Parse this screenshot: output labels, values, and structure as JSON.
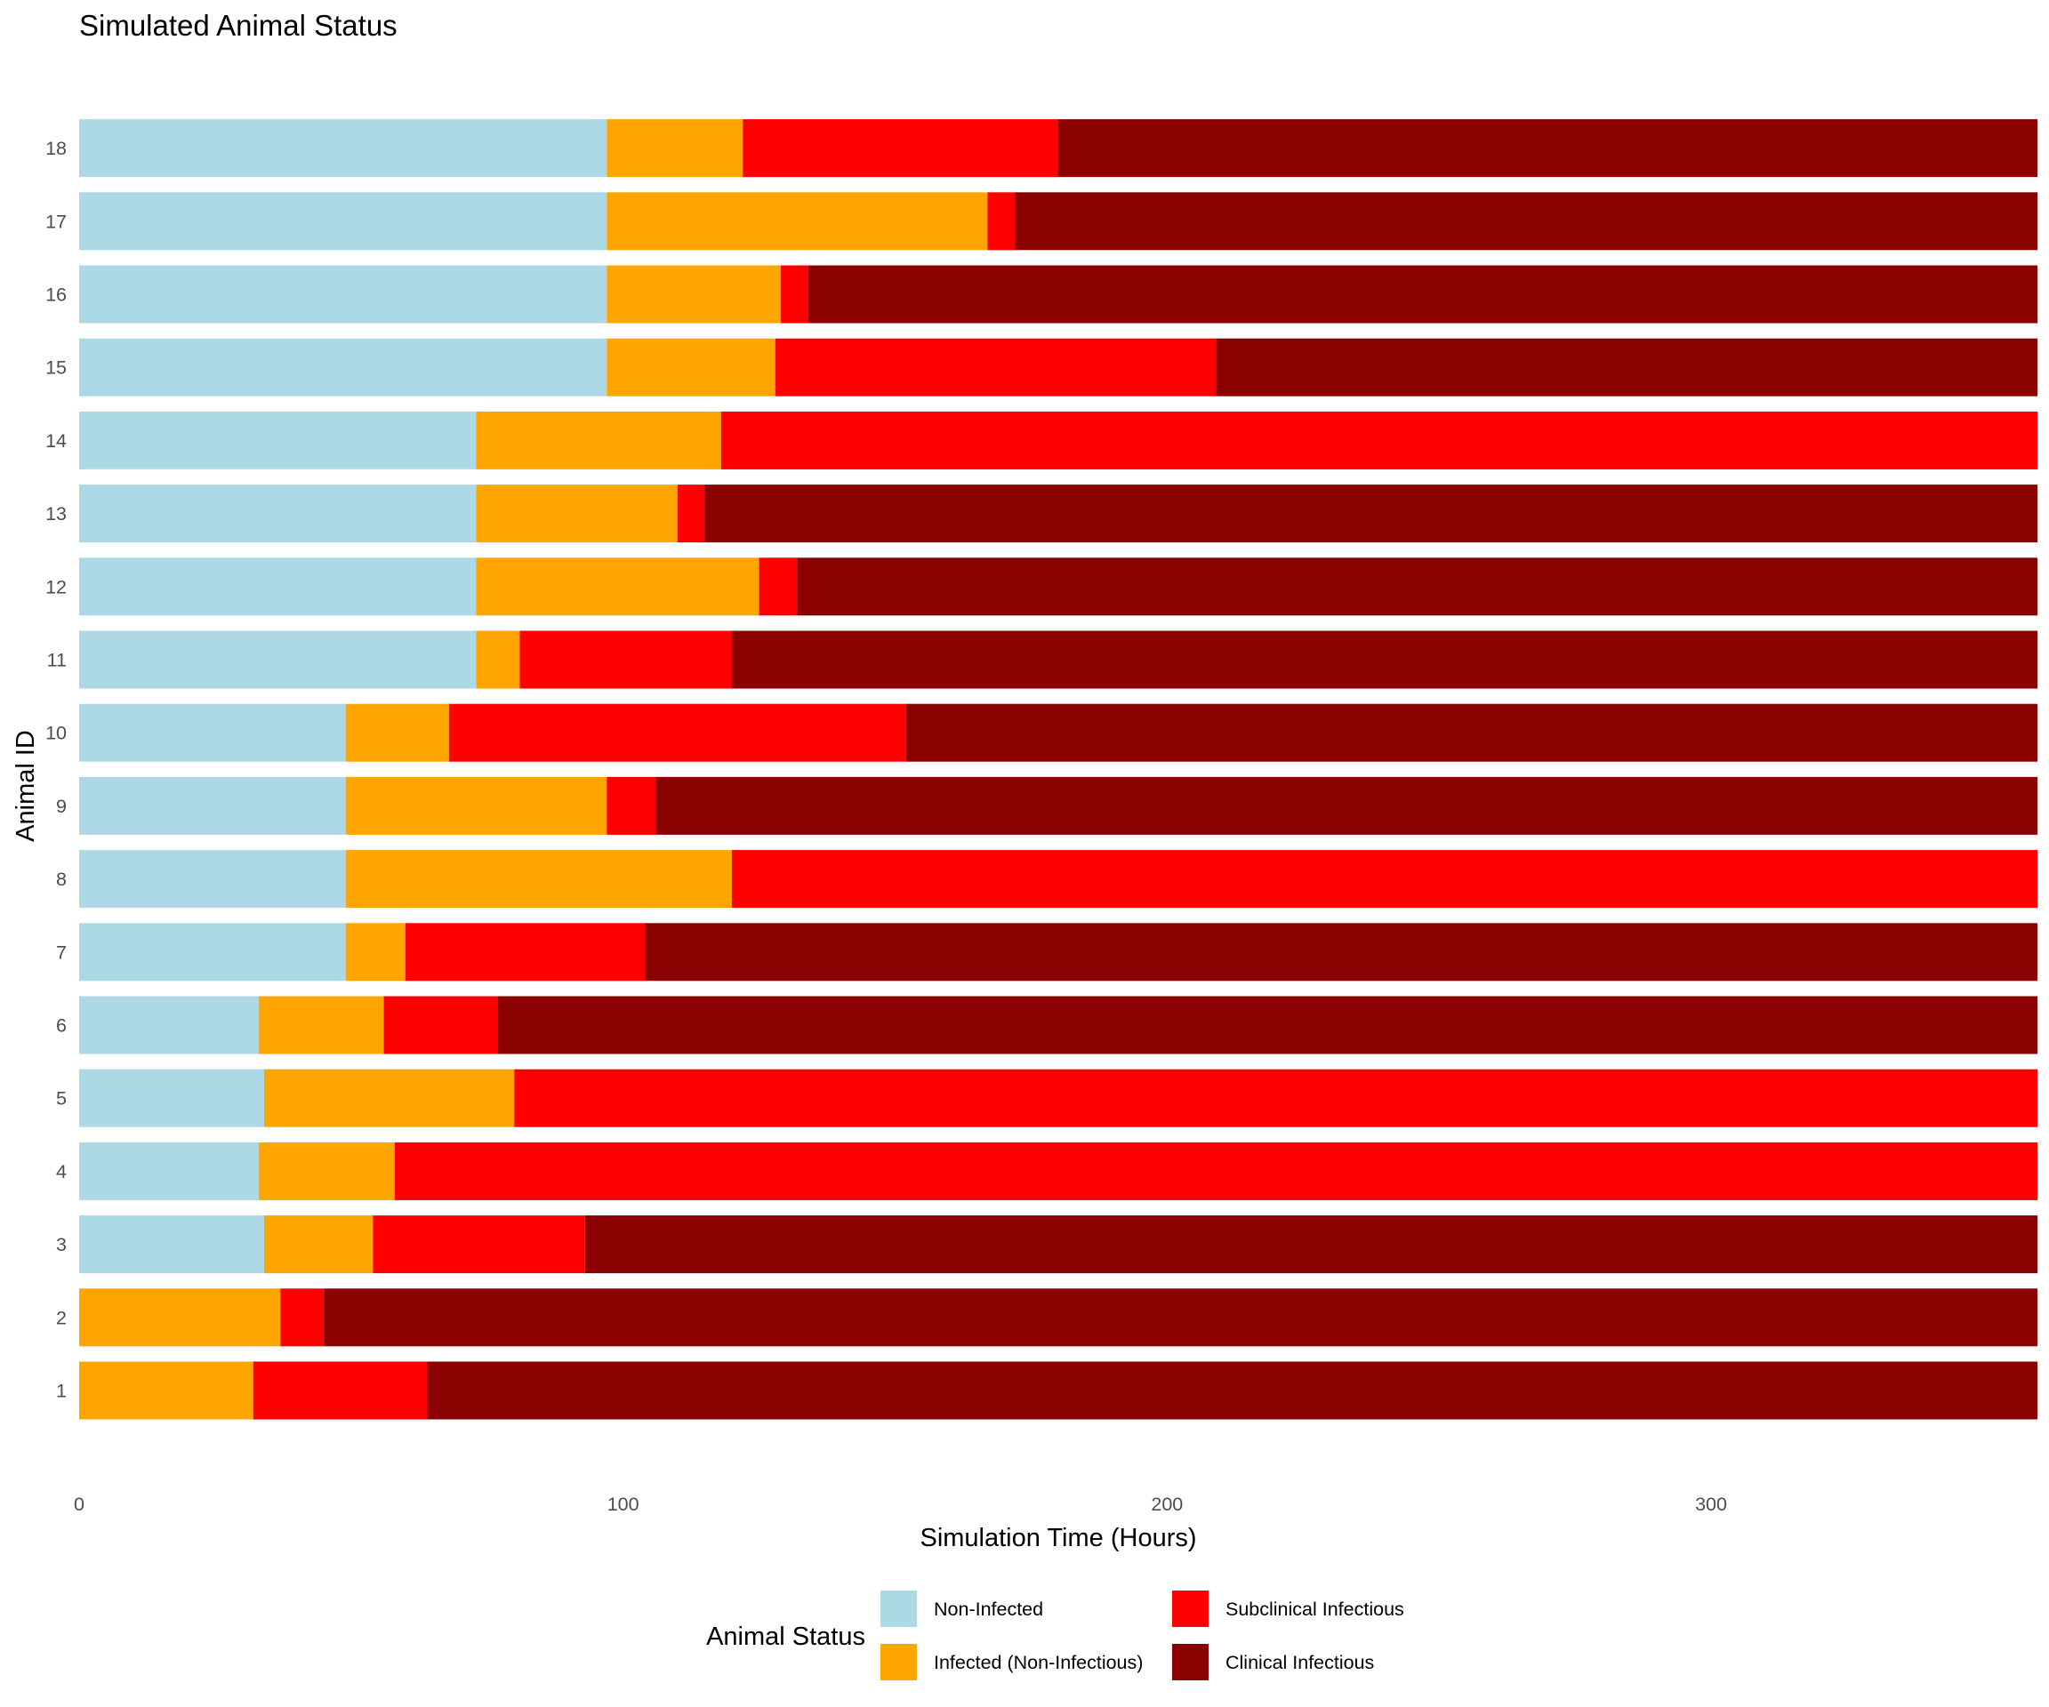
{
  "chart_data": {
    "type": "bar",
    "orientation": "horizontal",
    "stacked": true,
    "title": "Simulated Animal Status",
    "xlabel": "Simulation Time (Hours)",
    "ylabel": "Animal ID",
    "xlim": [
      0,
      360
    ],
    "xticks": [
      0,
      100,
      200,
      300
    ],
    "grid": false,
    "legend": {
      "title": "Animal Status",
      "position": "bottom"
    },
    "statuses": [
      {
        "key": "non_infected",
        "name": "Non-Infected",
        "color": "#ADD8E6"
      },
      {
        "key": "infected",
        "name": "Infected (Non-Infectious)",
        "color": "#FFA500"
      },
      {
        "key": "subclinical",
        "name": "Subclinical Infectious",
        "color": "#FF0000"
      },
      {
        "key": "clinical",
        "name": "Clinical Infectious",
        "color": "#8B0000"
      }
    ],
    "categories": [
      "1",
      "2",
      "3",
      "4",
      "5",
      "6",
      "7",
      "8",
      "9",
      "10",
      "11",
      "12",
      "13",
      "14",
      "15",
      "16",
      "17",
      "18"
    ],
    "animals": [
      {
        "id": "1",
        "segments": [
          {
            "status": "infected",
            "start": 0,
            "end": 32
          },
          {
            "status": "subclinical",
            "start": 32,
            "end": 64
          },
          {
            "status": "clinical",
            "start": 64,
            "end": 360
          }
        ]
      },
      {
        "id": "2",
        "segments": [
          {
            "status": "infected",
            "start": 0,
            "end": 37
          },
          {
            "status": "subclinical",
            "start": 37,
            "end": 45
          },
          {
            "status": "clinical",
            "start": 45,
            "end": 360
          }
        ]
      },
      {
        "id": "3",
        "segments": [
          {
            "status": "non_infected",
            "start": 0,
            "end": 34
          },
          {
            "status": "infected",
            "start": 34,
            "end": 54
          },
          {
            "status": "subclinical",
            "start": 54,
            "end": 93
          },
          {
            "status": "clinical",
            "start": 93,
            "end": 360
          }
        ]
      },
      {
        "id": "4",
        "segments": [
          {
            "status": "non_infected",
            "start": 0,
            "end": 33
          },
          {
            "status": "infected",
            "start": 33,
            "end": 58
          },
          {
            "status": "subclinical",
            "start": 58,
            "end": 360
          }
        ]
      },
      {
        "id": "5",
        "segments": [
          {
            "status": "non_infected",
            "start": 0,
            "end": 34
          },
          {
            "status": "infected",
            "start": 34,
            "end": 80
          },
          {
            "status": "subclinical",
            "start": 80,
            "end": 360
          }
        ]
      },
      {
        "id": "6",
        "segments": [
          {
            "status": "non_infected",
            "start": 0,
            "end": 33
          },
          {
            "status": "infected",
            "start": 33,
            "end": 56
          },
          {
            "status": "subclinical",
            "start": 56,
            "end": 77
          },
          {
            "status": "clinical",
            "start": 77,
            "end": 360
          }
        ]
      },
      {
        "id": "7",
        "segments": [
          {
            "status": "non_infected",
            "start": 0,
            "end": 49
          },
          {
            "status": "infected",
            "start": 49,
            "end": 60
          },
          {
            "status": "subclinical",
            "start": 60,
            "end": 104
          },
          {
            "status": "clinical",
            "start": 104,
            "end": 360
          }
        ]
      },
      {
        "id": "8",
        "segments": [
          {
            "status": "non_infected",
            "start": 0,
            "end": 49
          },
          {
            "status": "infected",
            "start": 49,
            "end": 120
          },
          {
            "status": "subclinical",
            "start": 120,
            "end": 360
          }
        ]
      },
      {
        "id": "9",
        "segments": [
          {
            "status": "non_infected",
            "start": 0,
            "end": 49
          },
          {
            "status": "infected",
            "start": 49,
            "end": 97
          },
          {
            "status": "subclinical",
            "start": 97,
            "end": 106
          },
          {
            "status": "clinical",
            "start": 106,
            "end": 360
          }
        ]
      },
      {
        "id": "10",
        "segments": [
          {
            "status": "non_infected",
            "start": 0,
            "end": 49
          },
          {
            "status": "infected",
            "start": 49,
            "end": 68
          },
          {
            "status": "subclinical",
            "start": 68,
            "end": 152
          },
          {
            "status": "clinical",
            "start": 152,
            "end": 360
          }
        ]
      },
      {
        "id": "11",
        "segments": [
          {
            "status": "non_infected",
            "start": 0,
            "end": 73
          },
          {
            "status": "infected",
            "start": 73,
            "end": 81
          },
          {
            "status": "subclinical",
            "start": 81,
            "end": 120
          },
          {
            "status": "clinical",
            "start": 120,
            "end": 360
          }
        ]
      },
      {
        "id": "12",
        "segments": [
          {
            "status": "non_infected",
            "start": 0,
            "end": 73
          },
          {
            "status": "infected",
            "start": 73,
            "end": 125
          },
          {
            "status": "subclinical",
            "start": 125,
            "end": 132
          },
          {
            "status": "clinical",
            "start": 132,
            "end": 360
          }
        ]
      },
      {
        "id": "13",
        "segments": [
          {
            "status": "non_infected",
            "start": 0,
            "end": 73
          },
          {
            "status": "infected",
            "start": 73,
            "end": 110
          },
          {
            "status": "subclinical",
            "start": 110,
            "end": 115
          },
          {
            "status": "clinical",
            "start": 115,
            "end": 360
          }
        ]
      },
      {
        "id": "14",
        "segments": [
          {
            "status": "non_infected",
            "start": 0,
            "end": 73
          },
          {
            "status": "infected",
            "start": 73,
            "end": 118
          },
          {
            "status": "subclinical",
            "start": 118,
            "end": 360
          }
        ]
      },
      {
        "id": "15",
        "segments": [
          {
            "status": "non_infected",
            "start": 0,
            "end": 97
          },
          {
            "status": "infected",
            "start": 97,
            "end": 128
          },
          {
            "status": "subclinical",
            "start": 128,
            "end": 209
          },
          {
            "status": "clinical",
            "start": 209,
            "end": 360
          }
        ]
      },
      {
        "id": "16",
        "segments": [
          {
            "status": "non_infected",
            "start": 0,
            "end": 97
          },
          {
            "status": "infected",
            "start": 97,
            "end": 129
          },
          {
            "status": "subclinical",
            "start": 129,
            "end": 134
          },
          {
            "status": "clinical",
            "start": 134,
            "end": 360
          }
        ]
      },
      {
        "id": "17",
        "segments": [
          {
            "status": "non_infected",
            "start": 0,
            "end": 97
          },
          {
            "status": "infected",
            "start": 97,
            "end": 167
          },
          {
            "status": "subclinical",
            "start": 167,
            "end": 172
          },
          {
            "status": "clinical",
            "start": 172,
            "end": 360
          }
        ]
      },
      {
        "id": "18",
        "segments": [
          {
            "status": "non_infected",
            "start": 0,
            "end": 97
          },
          {
            "status": "infected",
            "start": 97,
            "end": 122
          },
          {
            "status": "subclinical",
            "start": 122,
            "end": 180
          },
          {
            "status": "clinical",
            "start": 180,
            "end": 360
          }
        ]
      }
    ]
  }
}
